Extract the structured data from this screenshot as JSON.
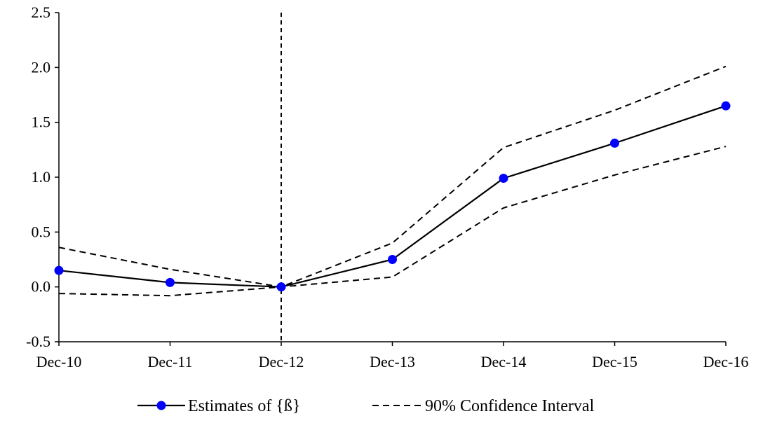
{
  "chart_data": {
    "type": "line",
    "categories": [
      "Dec-10",
      "Dec-11",
      "Dec-12",
      "Dec-13",
      "Dec-14",
      "Dec-15",
      "Dec-16"
    ],
    "series": [
      {
        "name": "Estimates of {ß}",
        "values": [
          0.15,
          0.04,
          0.0,
          0.25,
          0.99,
          1.31,
          1.65
        ],
        "color": "#0000ff",
        "line_color": "#000000",
        "style": "solid-with-markers"
      },
      {
        "name": "90% Confidence Interval",
        "values": [
          0.36,
          0.16,
          0.0,
          0.4,
          1.27,
          1.61,
          2.01
        ],
        "color": "#000000",
        "style": "dashed"
      },
      {
        "name": "",
        "values": [
          -0.06,
          -0.08,
          0.0,
          0.09,
          0.72,
          1.02,
          1.28
        ],
        "color": "#000000",
        "style": "dashed"
      }
    ],
    "yticks": [
      "-0.5",
      "0.0",
      "0.5",
      "1.0",
      "1.5",
      "2.0",
      "2.5"
    ],
    "ylim": [
      -0.5,
      2.5
    ],
    "reference_line_x": "Dec-12",
    "grid": false,
    "legend_position": "bottom-center",
    "legend": [
      {
        "label": "Estimates of {ß}",
        "style": "solid-with-markers"
      },
      {
        "label": "90% Confidence Interval",
        "style": "dashed"
      }
    ]
  }
}
